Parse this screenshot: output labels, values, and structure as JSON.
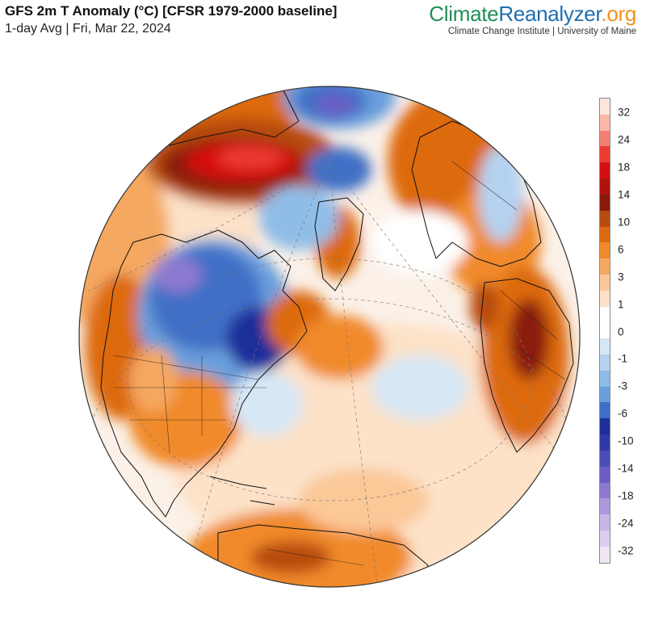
{
  "header": {
    "title": "GFS 2m T Anomaly (°C) [CFSR 1979-2000 baseline]",
    "subtitle": "1-day Avg | Fri, Mar 22, 2024"
  },
  "brand": {
    "part1": "Climate",
    "part2": "Reanalyzer",
    "part3": ".org",
    "tagline": "Climate Change Institute | University of Maine"
  },
  "legend": {
    "labels": [
      "32",
      "24",
      "18",
      "14",
      "10",
      "6",
      "3",
      "1",
      "0",
      "-1",
      "-3",
      "-6",
      "-10",
      "-14",
      "-18",
      "-24",
      "-32"
    ],
    "colors": [
      "#fde6dc",
      "#fbb8a8",
      "#f47f74",
      "#ec3b32",
      "#d50f0f",
      "#b0120d",
      "#8a1a08",
      "#b84b0f",
      "#dd6a10",
      "#f08a2a",
      "#f5a860",
      "#fbc898",
      "#fde2c8",
      "#ffffff",
      "#ffffff",
      "#d6e7f6",
      "#b4d2f0",
      "#90bde8",
      "#6a9fdc",
      "#3f6fc6",
      "#1c2f9a",
      "#2f3aa8",
      "#4a4cb8",
      "#6b5ec4",
      "#8e79d0",
      "#ad98dc",
      "#c8b6e6",
      "#ddcdee",
      "#f0e6f6"
    ]
  },
  "map_style": {
    "ocean_neutral": "#fbeee2",
    "warm": "#f08a2a",
    "hot": "#d50f0f",
    "cold": "#3f6fc6",
    "very_cold": "#1c2f9a",
    "coast": "#111111"
  }
}
